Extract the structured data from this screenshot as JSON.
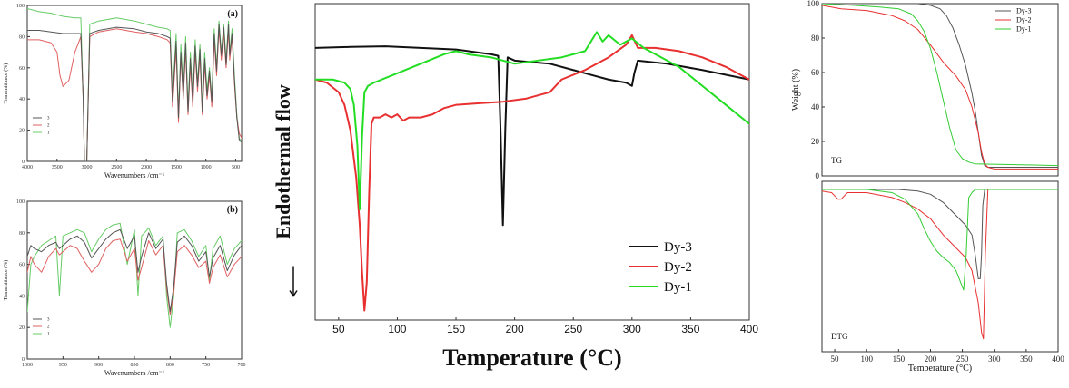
{
  "chart_data": [
    {
      "id": "ir_a",
      "type": "line",
      "panel_label": "(a)",
      "xlabel": "Wavenumbers /cm⁻¹",
      "ylabel": "Transmittance (%)",
      "xlim": [
        4000,
        400
      ],
      "ylim": [
        0,
        100
      ],
      "xticks": [
        4000,
        3500,
        3000,
        2500,
        2000,
        1500,
        1000,
        500
      ],
      "yticks": [
        0,
        20,
        40,
        60,
        80,
        100
      ],
      "legend": [
        "3",
        "2",
        "1"
      ],
      "colors": {
        "3": "#555555",
        "2": "#e06060",
        "1": "#66cc66"
      },
      "series": [
        {
          "name": "1",
          "x": [
            4000,
            3800,
            3600,
            3400,
            3200,
            3100,
            3060,
            3040,
            3000,
            2950,
            2800,
            2500,
            2200,
            2000,
            1800,
            1650,
            1600,
            1560,
            1500,
            1460,
            1420,
            1380,
            1340,
            1300,
            1260,
            1220,
            1180,
            1140,
            1100,
            1060,
            1020,
            980,
            940,
            900,
            860,
            820,
            780,
            740,
            700,
            660,
            620,
            600,
            560,
            520,
            480,
            440,
            400
          ],
          "y": [
            98,
            96,
            95,
            93,
            92,
            92,
            40,
            0,
            0,
            88,
            90,
            92,
            90,
            88,
            86,
            85,
            84,
            40,
            82,
            30,
            75,
            45,
            80,
            35,
            70,
            40,
            78,
            50,
            75,
            35,
            70,
            45,
            60,
            40,
            85,
            60,
            90,
            70,
            88,
            65,
            90,
            70,
            85,
            55,
            30,
            15,
            12
          ]
        },
        {
          "name": "2",
          "x": [
            4000,
            3800,
            3600,
            3500,
            3450,
            3400,
            3300,
            3200,
            3100,
            3060,
            3040,
            3000,
            2950,
            2800,
            2500,
            2200,
            2000,
            1800,
            1650,
            1600,
            1560,
            1500,
            1460,
            1420,
            1380,
            1340,
            1300,
            1260,
            1220,
            1180,
            1140,
            1100,
            1060,
            1020,
            980,
            940,
            900,
            860,
            820,
            780,
            740,
            700,
            660,
            620,
            600,
            560,
            520,
            480,
            440,
            400
          ],
          "y": [
            78,
            78,
            76,
            70,
            55,
            48,
            52,
            70,
            80,
            40,
            0,
            0,
            80,
            83,
            85,
            83,
            82,
            80,
            78,
            76,
            35,
            72,
            25,
            68,
            40,
            72,
            30,
            62,
            35,
            70,
            45,
            68,
            30,
            62,
            40,
            55,
            35,
            78,
            55,
            85,
            65,
            82,
            60,
            85,
            65,
            80,
            50,
            28,
            18,
            15
          ]
        },
        {
          "name": "3",
          "x": [
            4000,
            3800,
            3600,
            3400,
            3200,
            3100,
            3060,
            3040,
            3000,
            2950,
            2800,
            2500,
            2200,
            2000,
            1800,
            1650,
            1600,
            1560,
            1500,
            1460,
            1420,
            1380,
            1340,
            1300,
            1260,
            1220,
            1180,
            1140,
            1100,
            1060,
            1020,
            980,
            940,
            900,
            860,
            820,
            780,
            740,
            700,
            660,
            620,
            600,
            560,
            520,
            480,
            440,
            400
          ],
          "y": [
            84,
            84,
            83,
            82,
            82,
            82,
            40,
            0,
            0,
            82,
            84,
            86,
            85,
            83,
            82,
            80,
            79,
            38,
            77,
            28,
            70,
            42,
            76,
            32,
            66,
            38,
            74,
            48,
            72,
            32,
            66,
            42,
            58,
            38,
            82,
            58,
            88,
            68,
            86,
            62,
            88,
            68,
            82,
            52,
            28,
            14,
            12
          ]
        }
      ]
    },
    {
      "id": "ir_b",
      "type": "line",
      "panel_label": "(b)",
      "xlabel": "Wavenumbers /cm⁻¹",
      "ylabel": "Transmittance (%)",
      "xlim": [
        1000,
        700
      ],
      "ylim": [
        0,
        100
      ],
      "xticks": [
        1000,
        950,
        900,
        850,
        800,
        750,
        700
      ],
      "yticks": [
        0,
        20,
        40,
        60,
        80,
        100
      ],
      "legend": [
        "3",
        "2",
        "1"
      ],
      "colors": {
        "3": "#555555",
        "2": "#e06060",
        "1": "#66cc66"
      },
      "series": [
        {
          "name": "1",
          "x": [
            1000,
            995,
            990,
            980,
            970,
            960,
            955,
            950,
            940,
            930,
            920,
            910,
            900,
            890,
            880,
            870,
            860,
            850,
            845,
            840,
            830,
            820,
            810,
            805,
            800,
            795,
            790,
            780,
            770,
            760,
            750,
            745,
            740,
            730,
            720,
            710,
            700
          ],
          "y": [
            30,
            60,
            65,
            72,
            75,
            78,
            40,
            78,
            80,
            82,
            80,
            68,
            76,
            82,
            85,
            86,
            60,
            82,
            40,
            78,
            83,
            72,
            78,
            40,
            20,
            40,
            80,
            82,
            75,
            65,
            72,
            50,
            70,
            78,
            60,
            70,
            75
          ]
        },
        {
          "name": "2",
          "x": [
            1000,
            995,
            990,
            980,
            970,
            960,
            955,
            950,
            940,
            930,
            920,
            910,
            900,
            890,
            880,
            870,
            860,
            850,
            845,
            840,
            830,
            820,
            810,
            805,
            800,
            795,
            790,
            780,
            770,
            760,
            750,
            745,
            740,
            730,
            720,
            710,
            700
          ],
          "y": [
            55,
            65,
            60,
            55,
            65,
            70,
            66,
            68,
            72,
            70,
            62,
            55,
            60,
            70,
            75,
            76,
            62,
            70,
            50,
            58,
            75,
            66,
            72,
            45,
            28,
            42,
            68,
            72,
            66,
            58,
            62,
            48,
            58,
            66,
            52,
            60,
            65
          ]
        },
        {
          "name": "3",
          "x": [
            1000,
            995,
            990,
            980,
            970,
            960,
            955,
            950,
            940,
            930,
            920,
            910,
            900,
            890,
            880,
            870,
            860,
            850,
            845,
            840,
            830,
            820,
            810,
            805,
            800,
            795,
            790,
            780,
            770,
            760,
            750,
            745,
            740,
            730,
            720,
            710,
            700
          ],
          "y": [
            65,
            72,
            70,
            68,
            72,
            74,
            70,
            72,
            76,
            78,
            74,
            64,
            70,
            76,
            80,
            82,
            70,
            78,
            55,
            65,
            80,
            70,
            76,
            48,
            30,
            46,
            74,
            78,
            72,
            62,
            68,
            52,
            64,
            72,
            56,
            66,
            72
          ]
        }
      ]
    },
    {
      "id": "dsc",
      "type": "line",
      "xlabel": "Temperature (°C)",
      "ylabel": "Endothermal flow",
      "xlim": [
        30,
        400
      ],
      "ylim": [
        0,
        100
      ],
      "xticks": [
        50,
        100,
        150,
        200,
        250,
        300,
        350,
        400
      ],
      "legend": [
        "Dy-3",
        "Dy-2",
        "Dy-1"
      ],
      "legend_position": "bottom-right",
      "colors": {
        "Dy-3": "#111111",
        "Dy-2": "#e83030",
        "Dy-1": "#22dd22"
      },
      "series": [
        {
          "name": "Dy-3",
          "x": [
            30,
            60,
            90,
            120,
            150,
            180,
            186,
            188,
            190,
            192,
            194,
            200,
            230,
            260,
            280,
            295,
            300,
            302,
            305,
            330,
            360,
            400
          ],
          "y": [
            86,
            86.3,
            86.5,
            86,
            85.5,
            84,
            83.5,
            60,
            30,
            60,
            83,
            82,
            81,
            78,
            76,
            75,
            74,
            78,
            82,
            81,
            79,
            76
          ]
        },
        {
          "name": "Dy-2",
          "x": [
            30,
            40,
            50,
            55,
            60,
            65,
            68,
            70,
            72,
            74,
            76,
            78,
            80,
            85,
            90,
            95,
            100,
            105,
            110,
            120,
            130,
            140,
            150,
            170,
            190,
            210,
            230,
            235,
            240,
            260,
            280,
            295,
            300,
            305,
            320,
            340,
            360,
            380,
            400
          ],
          "y": [
            76,
            75,
            72,
            68,
            60,
            45,
            30,
            15,
            3,
            12,
            40,
            62,
            64,
            64,
            65,
            64,
            65,
            63,
            64,
            64,
            65,
            67,
            68,
            68.5,
            69,
            70,
            72,
            74,
            76,
            79,
            83,
            87,
            90,
            86,
            86,
            85,
            83,
            80,
            76
          ]
        },
        {
          "name": "Dy-1",
          "x": [
            30,
            45,
            55,
            60,
            63,
            66,
            68,
            70,
            72,
            75,
            80,
            100,
            120,
            140,
            150,
            160,
            180,
            190,
            200,
            220,
            240,
            260,
            265,
            270,
            275,
            280,
            290,
            300,
            310,
            320,
            340,
            360,
            380,
            400
          ],
          "y": [
            76,
            76,
            75,
            73,
            68,
            55,
            35,
            58,
            72,
            74,
            75,
            78,
            81,
            84,
            85,
            84,
            83,
            82,
            81,
            82,
            83,
            85,
            88,
            91,
            88,
            90,
            87,
            89,
            86,
            84,
            80,
            74,
            68,
            62
          ]
        }
      ]
    },
    {
      "id": "tg",
      "type": "line",
      "panel_label": "TG",
      "ylabel": "Weight (%)",
      "xlim": [
        30,
        400
      ],
      "ylim": [
        0,
        100
      ],
      "yticks": [
        0,
        20,
        40,
        60,
        80,
        100
      ],
      "legend": [
        "Dy-3",
        "Dy-2",
        "Dy-1"
      ],
      "legend_position": "top-right",
      "colors": {
        "Dy-3": "#555555",
        "Dy-2": "#e83030",
        "Dy-1": "#33cc33"
      },
      "series": [
        {
          "name": "Dy-3",
          "x": [
            30,
            100,
            150,
            180,
            200,
            215,
            225,
            235,
            245,
            255,
            265,
            270,
            275,
            280,
            285,
            290,
            300,
            400
          ],
          "y": [
            100,
            100,
            100,
            100,
            99,
            97,
            93,
            86,
            76,
            64,
            48,
            38,
            25,
            12,
            6,
            5,
            5,
            5
          ]
        },
        {
          "name": "Dy-2",
          "x": [
            30,
            60,
            100,
            140,
            160,
            180,
            200,
            220,
            240,
            255,
            265,
            275,
            280,
            285,
            290,
            300,
            400
          ],
          "y": [
            99,
            97,
            96,
            93,
            90,
            85,
            76,
            66,
            58,
            50,
            40,
            25,
            14,
            7,
            5,
            4,
            4
          ]
        },
        {
          "name": "Dy-1",
          "x": [
            30,
            80,
            120,
            150,
            170,
            180,
            190,
            200,
            210,
            220,
            230,
            240,
            250,
            255,
            260,
            270,
            400
          ],
          "y": [
            100,
            99,
            98,
            97,
            94,
            90,
            84,
            74,
            60,
            44,
            28,
            15,
            10,
            9,
            8,
            7,
            6
          ]
        }
      ]
    },
    {
      "id": "dtg",
      "type": "line",
      "panel_label": "DTG",
      "xlabel": "Temperature (°C)",
      "xlim": [
        30,
        400
      ],
      "ylim": [
        -100,
        5
      ],
      "xticks": [
        50,
        100,
        150,
        200,
        250,
        300,
        350,
        400
      ],
      "colors": {
        "Dy-3": "#555555",
        "Dy-2": "#e83030",
        "Dy-1": "#33cc33"
      },
      "series": [
        {
          "name": "Dy-3",
          "x": [
            30,
            100,
            150,
            180,
            200,
            220,
            240,
            255,
            265,
            270,
            275,
            278,
            280,
            282,
            285,
            400
          ],
          "y": [
            0,
            0,
            0,
            -1,
            -3,
            -8,
            -16,
            -22,
            -28,
            -40,
            -55,
            -55,
            -40,
            -10,
            0,
            0
          ]
        },
        {
          "name": "Dy-2",
          "x": [
            30,
            45,
            55,
            60,
            70,
            100,
            140,
            160,
            180,
            200,
            220,
            240,
            255,
            265,
            275,
            280,
            283,
            286,
            290,
            400
          ],
          "y": [
            -1,
            -2,
            -6,
            -6,
            -2,
            -2,
            -5,
            -8,
            -12,
            -18,
            -28,
            -36,
            -42,
            -50,
            -70,
            -88,
            -92,
            -40,
            0,
            0
          ]
        },
        {
          "name": "Dy-1",
          "x": [
            30,
            100,
            140,
            160,
            180,
            190,
            200,
            210,
            220,
            230,
            240,
            248,
            252,
            256,
            260,
            265,
            270,
            400
          ],
          "y": [
            0,
            0,
            -2,
            -6,
            -15,
            -24,
            -32,
            -38,
            -42,
            -45,
            -50,
            -58,
            -62,
            -40,
            -5,
            -2,
            0,
            0
          ]
        }
      ]
    }
  ]
}
